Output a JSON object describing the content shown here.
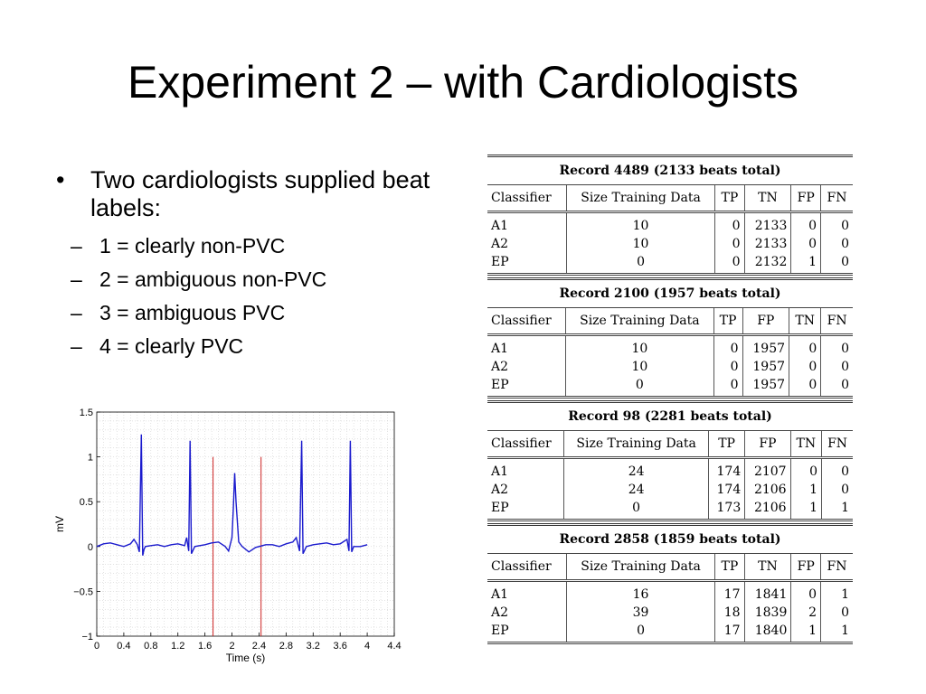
{
  "title": "Experiment 2 – with Cardiologists",
  "bullets": {
    "main": "Two cardiologists supplied beat labels:",
    "sub": [
      "1 = clearly non-PVC",
      "2 = ambiguous non-PVC",
      "3 = ambiguous PVC",
      "4 = clearly PVC"
    ]
  },
  "chart_data": {
    "type": "line",
    "xlabel": "Time (s)",
    "ylabel": "mV",
    "xlim": [
      0,
      4.4
    ],
    "ylim": [
      -1,
      1.5
    ],
    "xticks": [
      "0",
      "0.4",
      "0.8",
      "1.2",
      "1.6",
      "2",
      "2.4",
      "2.8",
      "3.2",
      "3.6",
      "4",
      "4.4"
    ],
    "yticks": [
      "1.5",
      "1",
      "0.5",
      "0",
      "−0.5",
      "−1"
    ],
    "grid": "on",
    "series": [
      {
        "x": [
          0,
          0.1,
          0.2,
          0.3,
          0.4,
          0.5,
          0.55,
          0.6,
          0.63,
          0.66,
          0.68,
          0.7,
          0.72,
          0.8,
          0.9,
          1.0,
          1.1,
          1.2,
          1.3,
          1.33,
          1.36,
          1.38,
          1.4,
          1.45,
          1.6,
          1.7,
          1.8,
          1.9,
          1.95,
          2.0,
          2.02,
          2.04,
          2.06,
          2.1,
          2.15,
          2.25,
          2.35,
          2.5,
          2.6,
          2.7,
          2.8,
          2.9,
          2.95,
          3.0,
          3.03,
          3.05,
          3.1,
          3.2,
          3.3,
          3.4,
          3.5,
          3.6,
          3.7,
          3.73,
          3.75,
          3.77,
          3.8,
          3.9,
          4.0
        ],
        "y": [
          0,
          0.03,
          0.04,
          0.02,
          0,
          0.03,
          0.08,
          0.02,
          -0.06,
          1.25,
          -0.1,
          -0.03,
          0,
          0.01,
          0.02,
          0,
          0.02,
          0.03,
          0.01,
          0.1,
          -0.05,
          1.18,
          -0.08,
          0,
          0.02,
          0.04,
          0.05,
          0,
          -0.05,
          0.1,
          0.42,
          0.82,
          0.5,
          0.05,
          0,
          -0.06,
          -0.01,
          0.02,
          0.02,
          0,
          0.03,
          0.05,
          0.1,
          -0.05,
          1.18,
          -0.08,
          0,
          0.02,
          0.03,
          0.04,
          0.02,
          0.03,
          0.08,
          -0.05,
          1.18,
          -0.06,
          0,
          0,
          0.02
        ],
        "color": "#1a1acd"
      }
    ],
    "vlines": [
      {
        "x": 1.72,
        "color": "#cc2222"
      },
      {
        "x": 2.43,
        "color": "#cc2222"
      }
    ]
  },
  "records": [
    {
      "title": "Record 4489 (2133 beats total)",
      "headers": [
        "Classifier",
        "Size Training Data",
        "TP",
        "TN",
        "FP",
        "FN"
      ],
      "rows": [
        [
          "A1",
          "10",
          "0",
          "2133",
          "0",
          "0"
        ],
        [
          "A2",
          "10",
          "0",
          "2133",
          "0",
          "0"
        ],
        [
          "EP",
          "0",
          "0",
          "2132",
          "1",
          "0"
        ]
      ]
    },
    {
      "title": "Record 2100 (1957 beats total)",
      "headers": [
        "Classifier",
        "Size Training Data",
        "TP",
        "FP",
        "TN",
        "FN"
      ],
      "rows": [
        [
          "A1",
          "10",
          "0",
          "1957",
          "0",
          "0"
        ],
        [
          "A2",
          "10",
          "0",
          "1957",
          "0",
          "0"
        ],
        [
          "EP",
          "0",
          "0",
          "1957",
          "0",
          "0"
        ]
      ]
    },
    {
      "title": "Record 98 (2281 beats total)",
      "headers": [
        "Classifier",
        "Size Training Data",
        "TP",
        "FP",
        "TN",
        "FN"
      ],
      "rows": [
        [
          "A1",
          "24",
          "174",
          "2107",
          "0",
          "0"
        ],
        [
          "A2",
          "24",
          "174",
          "2106",
          "1",
          "0"
        ],
        [
          "EP",
          "0",
          "173",
          "2106",
          "1",
          "1"
        ]
      ]
    },
    {
      "title": "Record 2858 (1859 beats total)",
      "headers": [
        "Classifier",
        "Size Training Data",
        "TP",
        "TN",
        "FP",
        "FN"
      ],
      "rows": [
        [
          "A1",
          "16",
          "17",
          "1841",
          "0",
          "1"
        ],
        [
          "A2",
          "39",
          "18",
          "1839",
          "2",
          "0"
        ],
        [
          "EP",
          "0",
          "17",
          "1840",
          "1",
          "1"
        ]
      ]
    }
  ]
}
